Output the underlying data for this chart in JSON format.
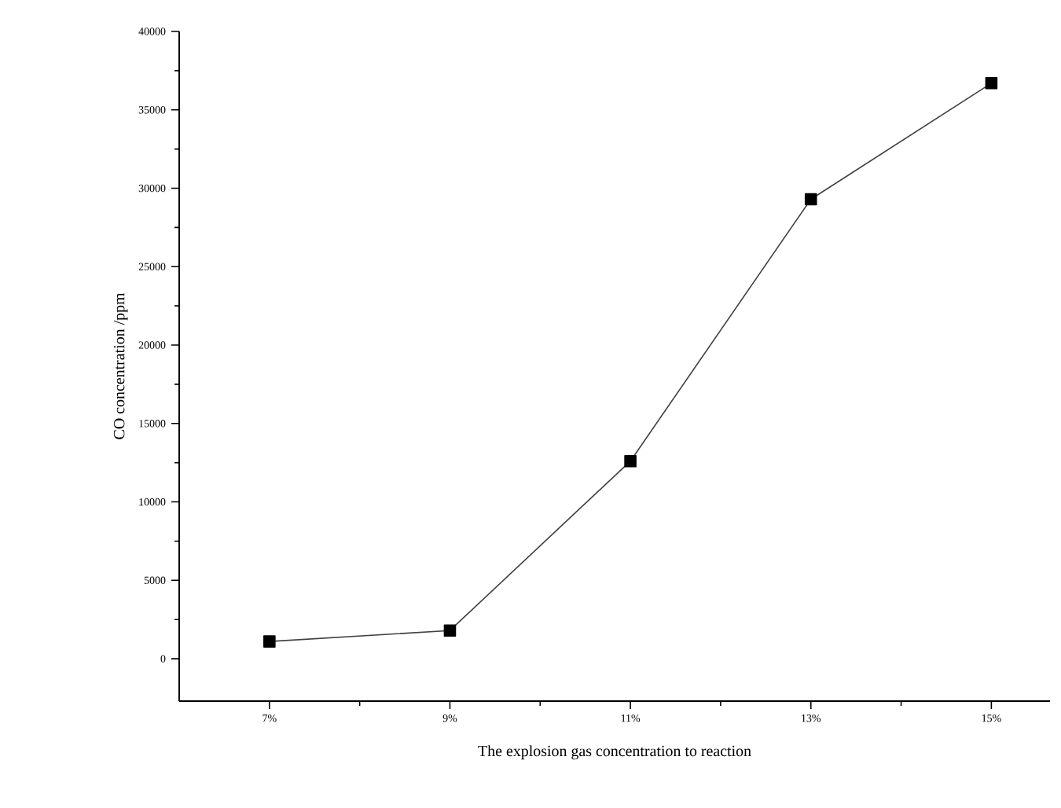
{
  "chart_data": {
    "type": "line",
    "xlabel": "The explosion gas concentration to reaction",
    "ylabel": "CO concentration /ppm",
    "x": [
      7,
      9,
      11,
      13,
      15
    ],
    "series": [
      {
        "color": "#000000",
        "values": [
          1100,
          1800,
          12600,
          29300,
          36700
        ]
      }
    ],
    "marker": "square",
    "line_style": "solid",
    "xlim": [
      6,
      15.65
    ],
    "ylim": [
      -2700,
      40000
    ],
    "xticks": [
      {
        "value": 7,
        "label": "7%"
      },
      {
        "value": 9,
        "label": "9%"
      },
      {
        "value": 11,
        "label": "11%"
      },
      {
        "value": 13,
        "label": "13%"
      },
      {
        "value": 15,
        "label": "15%"
      }
    ],
    "yticks": [
      0,
      5000,
      10000,
      15000,
      20000,
      25000,
      30000,
      35000,
      40000
    ]
  }
}
